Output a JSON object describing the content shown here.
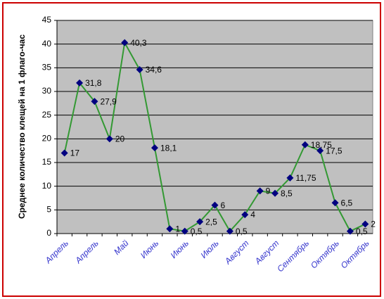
{
  "chart_data": {
    "type": "line",
    "y_label": "Среднее количество клещей на 1 флаго-час",
    "categories": [
      "Апрель",
      null,
      "Апрель",
      null,
      "Май",
      null,
      "Июнь",
      null,
      "Июнь",
      null,
      "Июль",
      null,
      "Август",
      null,
      "Август",
      null,
      "Сентябрь",
      null,
      "Октябрь",
      null,
      "Октябрь"
    ],
    "series": [
      {
        "name": null,
        "color": "#339933",
        "marker_color": "#000080",
        "values": [
          17,
          31.8,
          27.9,
          20,
          40.3,
          34.6,
          18.1,
          1,
          0.5,
          2.5,
          6,
          0.5,
          4,
          9,
          8.5,
          11.75,
          18.75,
          17.5,
          6.5,
          0.5,
          2
        ],
        "value_labels": [
          "17",
          "31,8",
          "27,9",
          "20",
          "40,3",
          "34,6",
          "18,1",
          "1",
          "0,5",
          "2,5",
          "6",
          "0,5",
          "4",
          "9",
          "8,5",
          "11,75",
          "18,75",
          "17,5",
          "6,5",
          "0,5",
          "2"
        ]
      }
    ],
    "ylim": [
      0,
      45
    ],
    "yticks": [
      0,
      5,
      10,
      15,
      20,
      25,
      30,
      35,
      40,
      45
    ],
    "grid": true
  }
}
